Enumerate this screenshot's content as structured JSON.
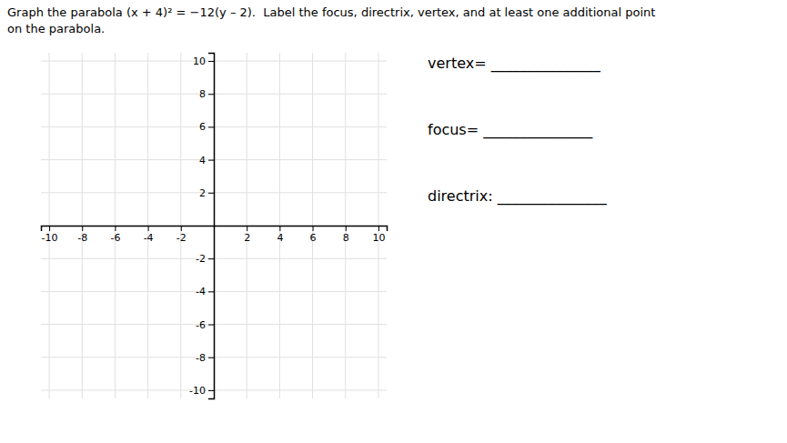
{
  "chart_data": {
    "type": "coordinate_plane",
    "title": [
      "Graph the parabola (x + 4)² = −12(y – 2).  Label the focus, directrix, vertex, and at least one additional point",
      "on the parabola."
    ],
    "annotations": [
      "vertex= _______________",
      "focus= _______________",
      "directrix: _______________"
    ],
    "xlim": [
      -10.5,
      10.5
    ],
    "ylim": [
      -10.5,
      10.5
    ],
    "xticks": [
      -10,
      -8,
      -6,
      -4,
      -2,
      2,
      4,
      6,
      8,
      10
    ],
    "yticks": [
      -10,
      -8,
      -6,
      -4,
      -2,
      2,
      4,
      6,
      8,
      10
    ],
    "grid": true
  }
}
